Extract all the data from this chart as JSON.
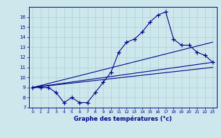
{
  "xlabel": "Graphe des températures (°c)",
  "bg_color": "#cde8ec",
  "line_color": "#00008b",
  "grid_color": "#aacdd4",
  "xlim": [
    -0.5,
    23.5
  ],
  "ylim": [
    7,
    17
  ],
  "xticks": [
    0,
    1,
    2,
    3,
    4,
    5,
    6,
    7,
    8,
    9,
    10,
    11,
    12,
    13,
    14,
    15,
    16,
    17,
    18,
    19,
    20,
    21,
    22,
    23
  ],
  "yticks": [
    7,
    8,
    9,
    10,
    11,
    12,
    13,
    14,
    15,
    16
  ],
  "series_actual_x": [
    0,
    1,
    2,
    3,
    4,
    5,
    6,
    7,
    8,
    9,
    10,
    11,
    12,
    13,
    14,
    15,
    16,
    17,
    18,
    19,
    20,
    21,
    22,
    23
  ],
  "series_actual_y": [
    9,
    9,
    9,
    8.5,
    7.5,
    8,
    7.5,
    7.5,
    8.5,
    9.5,
    10.5,
    12.5,
    13.5,
    13.8,
    14.5,
    15.5,
    16.2,
    16.5,
    13.8,
    13.2,
    13.2,
    12.5,
    12.2,
    11.5
  ],
  "line1_x": [
    0,
    23
  ],
  "line1_y": [
    9.0,
    13.5
  ],
  "line2_x": [
    0,
    23
  ],
  "line2_y": [
    9.0,
    11.5
  ],
  "line3_x": [
    0,
    23
  ],
  "line3_y": [
    9.0,
    11.0
  ]
}
